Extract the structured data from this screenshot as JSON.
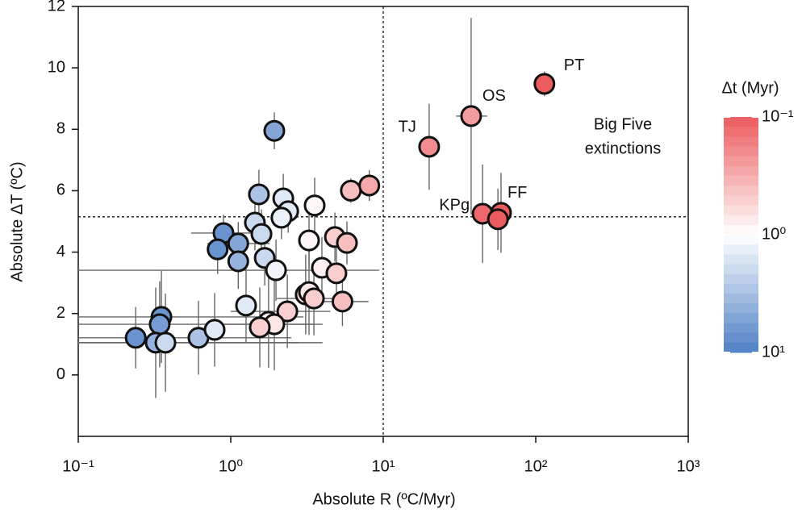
{
  "chart_data": {
    "type": "scatter",
    "xlabel": "Absolute R (ºC/Myr)",
    "ylabel": "Absolute ΔT (ºC)",
    "xscale": "log",
    "xlim": [
      0.1,
      1000
    ],
    "xticks": [
      {
        "value": 0.1,
        "label": "10⁻¹"
      },
      {
        "value": 1,
        "label": "10⁰"
      },
      {
        "value": 10,
        "label": "10¹"
      },
      {
        "value": 100,
        "label": "10²"
      },
      {
        "value": 1000,
        "label": "10³"
      }
    ],
    "ylim": [
      -2,
      12
    ],
    "yticks": [
      0,
      2,
      4,
      6,
      8,
      10,
      12
    ],
    "vline": 10,
    "hline": 5.15,
    "annotation": [
      "Big Five",
      "extinctions"
    ],
    "colorbar": {
      "label": "Δt (Myr)",
      "lim": [
        0.1,
        10
      ],
      "ticks": [
        {
          "value": 0.1,
          "label": "10⁻¹"
        },
        {
          "value": 1,
          "label": "10⁰"
        },
        {
          "value": 10,
          "label": "10¹"
        }
      ],
      "low_color": "#ec5b5e",
      "mid_color": "#ffffff",
      "high_color": "#4f80c6"
    },
    "points": {
      "x": [
        1.93,
        1.53,
        2.21,
        2.38,
        2.15,
        3.55,
        1.44,
        1.59,
        0.896,
        1.12,
        0.82,
        1.12,
        1.67,
        1.98,
        6.13,
        8.1,
        3.26,
        4.82,
        5.78,
        3.96,
        4.93,
        3.1,
        3.26,
        3.51,
        5.4,
        2.35,
        1.26,
        1.77,
        1.93,
        1.55,
        0.351,
        0.342,
        0.238,
        0.322,
        0.373,
        0.614,
        0.784
      ],
      "y": [
        7.95,
        5.88,
        5.75,
        5.33,
        5.12,
        5.52,
        4.96,
        4.59,
        4.62,
        4.28,
        4.09,
        3.7,
        3.81,
        3.41,
        6.0,
        6.17,
        4.38,
        4.49,
        4.3,
        3.49,
        3.31,
        2.62,
        2.7,
        2.49,
        2.39,
        2.07,
        2.26,
        1.73,
        1.65,
        1.55,
        1.89,
        1.65,
        1.21,
        1.05,
        1.05,
        1.21,
        1.47
      ],
      "dt": [
        5,
        3,
        1.5,
        1.5,
        1.3,
        0.9,
        2,
        2,
        7,
        5,
        7,
        4,
        2,
        1.2,
        0.4,
        0.3,
        0.9,
        0.5,
        0.4,
        0.8,
        0.5,
        0.6,
        0.7,
        0.5,
        0.4,
        0.5,
        1.5,
        0.8,
        0.7,
        0.5,
        7,
        6,
        7,
        4,
        2,
        3,
        1.5
      ],
      "yerr": [
        0.6,
        0.8,
        0.8,
        0.7,
        0.7,
        0.9,
        0.9,
        0.8,
        0.6,
        0.7,
        0.8,
        0.9,
        0.9,
        1.0,
        0.4,
        0.5,
        0.9,
        0.8,
        0.7,
        1.0,
        1.0,
        1.3,
        1.4,
        1.2,
        0.8,
        1.2,
        1.2,
        1.5,
        1.5,
        1.3,
        1.5,
        1.4,
        1.0,
        1.8,
        1.6,
        1.2,
        1.2
      ],
      "xerr": [
        null,
        null,
        null,
        null,
        null,
        null,
        null,
        null,
        [
          0.55,
          1.6
        ],
        [
          0.7,
          1.8
        ],
        null,
        null,
        null,
        [
          0.1,
          9.4
        ],
        null,
        null,
        null,
        null,
        null,
        null,
        null,
        null,
        null,
        [
          2.0,
          6.0
        ],
        [
          3.5,
          8.0
        ],
        [
          1.0,
          4.5
        ],
        null,
        null,
        [
          0.9,
          4.0
        ],
        null,
        [
          0.1,
          3.0
        ],
        [
          0.1,
          3.5
        ],
        [
          0.1,
          2.5
        ],
        [
          0.1,
          2.8
        ],
        [
          0.1,
          4.0
        ],
        null,
        null
      ]
    },
    "big_five": {
      "labels": [
        "PT",
        "OS",
        "TJ",
        "KPg",
        "FF",
        null
      ],
      "x": [
        114,
        37.7,
        20.0,
        44.8,
        59.2,
        56.5
      ],
      "y": [
        9.48,
        8.43,
        7.43,
        5.25,
        5.28,
        5.07
      ],
      "dt": [
        0.1,
        0.25,
        0.2,
        0.12,
        0.1,
        0.1
      ],
      "yerr": [
        0.4,
        3.2,
        1.4,
        1.6,
        1.3,
        1.0
      ],
      "xerr": [
        null,
        [
          30,
          48
        ],
        null,
        null,
        null,
        null
      ]
    }
  }
}
